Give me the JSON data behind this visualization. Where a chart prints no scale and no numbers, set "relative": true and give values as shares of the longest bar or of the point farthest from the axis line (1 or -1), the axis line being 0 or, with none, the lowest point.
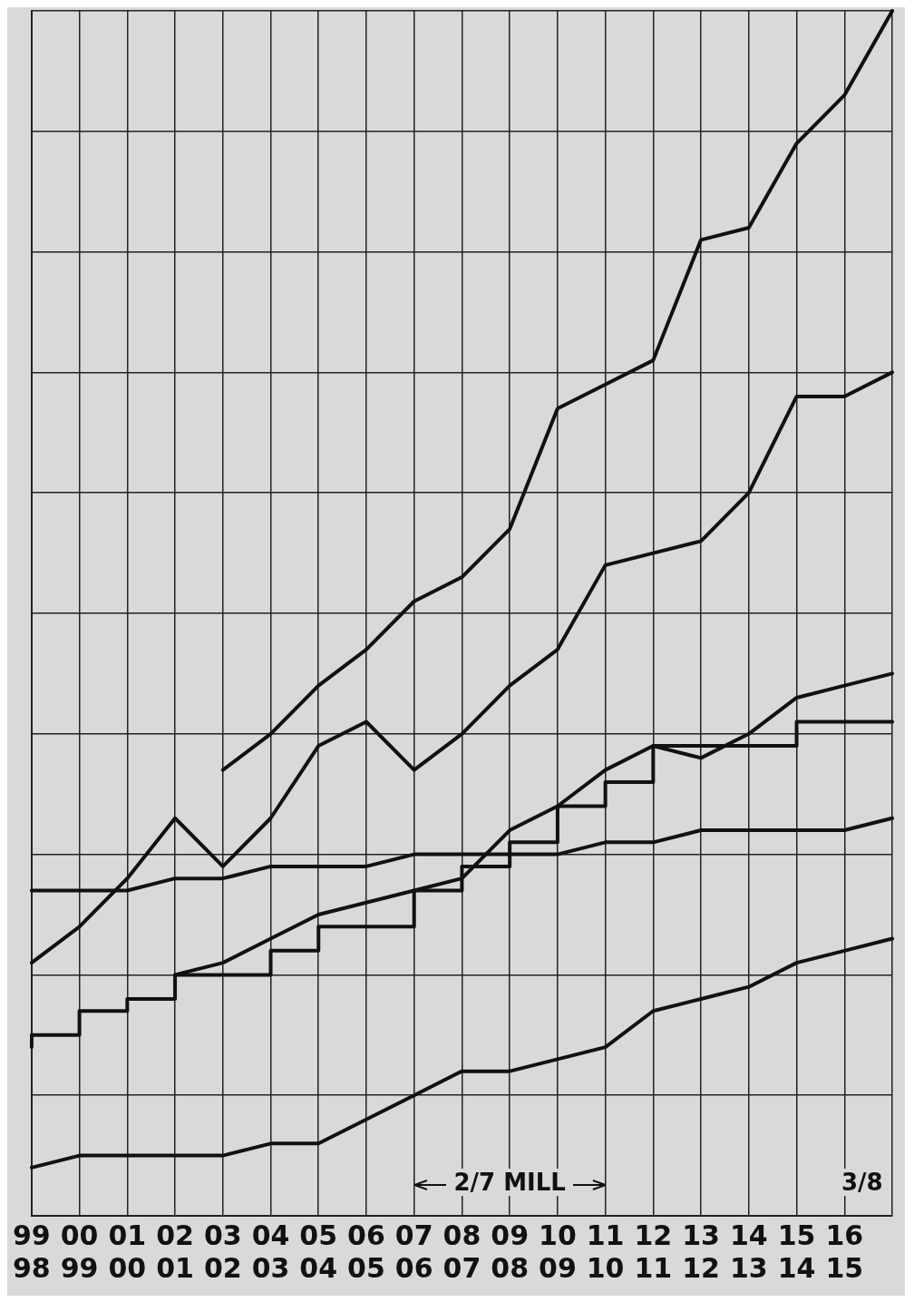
{
  "chart_data": {
    "type": "line",
    "relative": true,
    "grid": true,
    "legend": false,
    "marker": "none",
    "line_style": "solid",
    "categories": [
      "99\n98",
      "00\n99",
      "01\n00",
      "02\n01",
      "03\n02",
      "04\n03",
      "05\n04",
      "06\n05",
      "07\n06",
      "08\n07",
      "09\n08",
      "10\n09",
      "11\n10",
      "12\n11",
      "13\n12",
      "14\n13",
      "15\n14",
      "16\n15",
      null
    ],
    "series": [
      {
        "color": "#111111",
        "values": [
          null,
          null,
          null,
          null,
          0.37,
          0.4,
          0.44,
          0.47,
          0.51,
          0.53,
          0.57,
          0.67,
          0.69,
          0.71,
          0.81,
          0.82,
          0.89,
          0.93,
          1.0
        ]
      },
      {
        "color": "#111111",
        "values": [
          0.21,
          0.24,
          0.28,
          0.33,
          0.29,
          0.33,
          0.39,
          0.41,
          0.37,
          0.4,
          0.44,
          0.47,
          0.54,
          0.55,
          0.56,
          0.6,
          0.68,
          0.68,
          0.7
        ]
      },
      {
        "color": "#111111",
        "values": [
          null,
          null,
          null,
          0.2,
          0.21,
          0.23,
          0.25,
          0.26,
          0.27,
          0.28,
          0.32,
          0.34,
          0.37,
          0.39,
          0.38,
          0.4,
          0.43,
          0.44,
          0.45
        ]
      },
      {
        "color": "#111111",
        "values": [
          0.27,
          0.27,
          0.27,
          0.28,
          0.28,
          0.29,
          0.29,
          0.29,
          0.3,
          0.3,
          0.3,
          0.3,
          0.31,
          0.31,
          0.32,
          0.32,
          0.32,
          0.32,
          0.33
        ]
      },
      {
        "type": "step",
        "color": "#111111",
        "values": [
          0.14,
          0.15,
          0.17,
          0.18,
          0.2,
          0.2,
          0.22,
          0.24,
          0.24,
          0.27,
          0.29,
          0.31,
          0.34,
          0.36,
          0.39,
          0.39,
          0.39,
          0.41,
          0.41
        ]
      },
      {
        "color": "#111111",
        "values": [
          0.04,
          0.05,
          0.05,
          0.05,
          0.05,
          0.06,
          0.06,
          0.08,
          0.1,
          0.12,
          0.12,
          0.13,
          0.14,
          0.17,
          0.18,
          0.19,
          0.21,
          0.22,
          0.23
        ]
      }
    ],
    "annotations": [
      "2/7 MILL",
      "3/8"
    ]
  }
}
